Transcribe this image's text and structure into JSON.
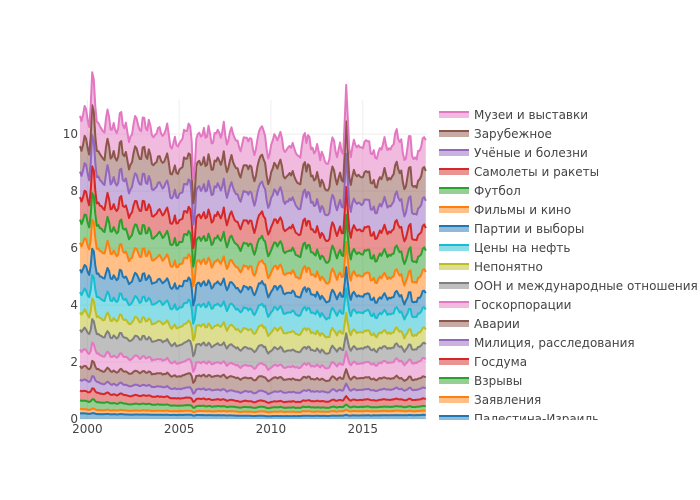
{
  "chart_data": {
    "type": "area",
    "stacked": true,
    "title": "",
    "xlabel": "",
    "ylabel": "",
    "xlim": [
      1999.6,
      2018.5
    ],
    "ylim": [
      0,
      11.2
    ],
    "x_ticks": [
      2000,
      2005,
      2010,
      2015
    ],
    "x_tick_labels": [
      "2000",
      "2005",
      "2010",
      "2015"
    ],
    "y_ticks": [
      0,
      2,
      4,
      6,
      8,
      10
    ],
    "y_tick_labels": [
      "0",
      "2",
      "4",
      "6",
      "8",
      "10"
    ],
    "grid": true,
    "legend_position": "right",
    "legend_clipped_after": "Палестина-Израиль",
    "anchor_years": [
      1999.6,
      2000,
      2002,
      2004,
      2006,
      2008,
      2010,
      2012,
      2014,
      2016,
      2017,
      2018.5
    ],
    "spike_events": [
      {
        "x": 2014.1,
        "amplitude": 0.07
      },
      {
        "x": 2000.3,
        "amplitude": 0.05
      },
      {
        "x": 2005.8,
        "amplitude": -0.05
      }
    ],
    "series_bottom_to_top": [
      {
        "name": "Палестина-Израиль",
        "color": "#1f77b4",
        "values": [
          0.2,
          0.18,
          0.16,
          0.15,
          0.14,
          0.12,
          0.1,
          0.11,
          0.12,
          0.13,
          0.13,
          0.14
        ]
      },
      {
        "name": "Заявления",
        "color": "#ff7f0e",
        "values": [
          0.15,
          0.14,
          0.14,
          0.14,
          0.14,
          0.14,
          0.15,
          0.15,
          0.15,
          0.15,
          0.15,
          0.14
        ]
      },
      {
        "name": "Взрывы",
        "color": "#2ca02c",
        "values": [
          0.3,
          0.28,
          0.24,
          0.22,
          0.18,
          0.16,
          0.15,
          0.15,
          0.15,
          0.15,
          0.15,
          0.15
        ]
      },
      {
        "name": "Госдума",
        "color": "#d62728",
        "values": [
          0.34,
          0.33,
          0.3,
          0.28,
          0.25,
          0.22,
          0.2,
          0.22,
          0.24,
          0.25,
          0.25,
          0.25
        ]
      },
      {
        "name": "Милиция, расследования",
        "color": "#9467bd",
        "values": [
          0.38,
          0.37,
          0.36,
          0.35,
          0.34,
          0.33,
          0.33,
          0.34,
          0.35,
          0.36,
          0.36,
          0.36
        ]
      },
      {
        "name": "Аварии",
        "color": "#8c564b",
        "values": [
          0.46,
          0.45,
          0.46,
          0.46,
          0.47,
          0.48,
          0.48,
          0.45,
          0.42,
          0.4,
          0.38,
          0.36
        ]
      },
      {
        "name": "Госкорпорации",
        "color": "#e377c2",
        "values": [
          0.56,
          0.55,
          0.52,
          0.5,
          0.47,
          0.44,
          0.42,
          0.45,
          0.5,
          0.55,
          0.58,
          0.6
        ]
      },
      {
        "name": "ООН и международные отношения",
        "color": "#7f7f7f",
        "values": [
          0.7,
          0.7,
          0.68,
          0.66,
          0.64,
          0.62,
          0.6,
          0.56,
          0.53,
          0.52,
          0.5,
          0.5
        ]
      },
      {
        "name": "Непонятно",
        "color": "#bcbd22",
        "values": [
          0.6,
          0.6,
          0.62,
          0.64,
          0.65,
          0.66,
          0.66,
          0.62,
          0.58,
          0.55,
          0.52,
          0.5
        ]
      },
      {
        "name": "Цены на нефть",
        "color": "#17becf",
        "values": [
          0.7,
          0.7,
          0.7,
          0.7,
          0.71,
          0.71,
          0.71,
          0.7,
          0.69,
          0.68,
          0.68,
          0.67
        ]
      },
      {
        "name": "Партии и выборы",
        "color": "#1f77b4",
        "values": [
          0.8,
          0.8,
          0.78,
          0.76,
          0.75,
          0.74,
          0.73,
          0.65,
          0.6,
          0.56,
          0.55,
          0.54
        ]
      },
      {
        "name": "Фильмы и кино",
        "color": "#ff7f0e",
        "values": [
          0.9,
          0.9,
          0.86,
          0.82,
          0.78,
          0.74,
          0.7,
          0.7,
          0.7,
          0.72,
          0.72,
          0.7
        ]
      },
      {
        "name": "Футбол",
        "color": "#2ca02c",
        "values": [
          0.8,
          0.8,
          0.8,
          0.8,
          0.8,
          0.8,
          0.8,
          0.78,
          0.76,
          0.8,
          0.8,
          0.7
        ]
      },
      {
        "name": "Самолеты и ракеты",
        "color": "#d62728",
        "values": [
          0.8,
          0.8,
          0.8,
          0.8,
          0.8,
          0.8,
          0.8,
          0.8,
          0.8,
          0.82,
          0.84,
          0.74
        ]
      },
      {
        "name": "Учёные и болезни",
        "color": "#9467bd",
        "values": [
          0.9,
          0.9,
          0.92,
          0.94,
          0.96,
          0.98,
          1.0,
          0.96,
          0.92,
          0.94,
          0.94,
          0.9
        ]
      },
      {
        "name": "Зарубежное",
        "color": "#8c564b",
        "values": [
          0.9,
          0.9,
          0.9,
          0.9,
          0.9,
          0.9,
          0.9,
          0.92,
          0.95,
          0.97,
          0.98,
          0.98
        ]
      },
      {
        "name": "Музеи и выставки",
        "color": "#e377c2",
        "values": [
          1.05,
          1.0,
          1.0,
          1.0,
          0.98,
          0.96,
          0.95,
          0.98,
          1.02,
          1.05,
          1.06,
          1.0
        ]
      }
    ],
    "legend_order_top_to_bottom": [
      "Музеи и выставки",
      "Зарубежное",
      "Учёные и болезни",
      "Самолеты и ракеты",
      "Футбол",
      "Фильмы и кино",
      "Партии и выборы",
      "Цены на нефть",
      "Непонятно",
      "ООН и международные отношения",
      "Госкорпорации",
      "Аварии",
      "Милиция, расследования",
      "Госдума",
      "Взрывы",
      "Заявления",
      "Палестина-Израиль"
    ]
  }
}
